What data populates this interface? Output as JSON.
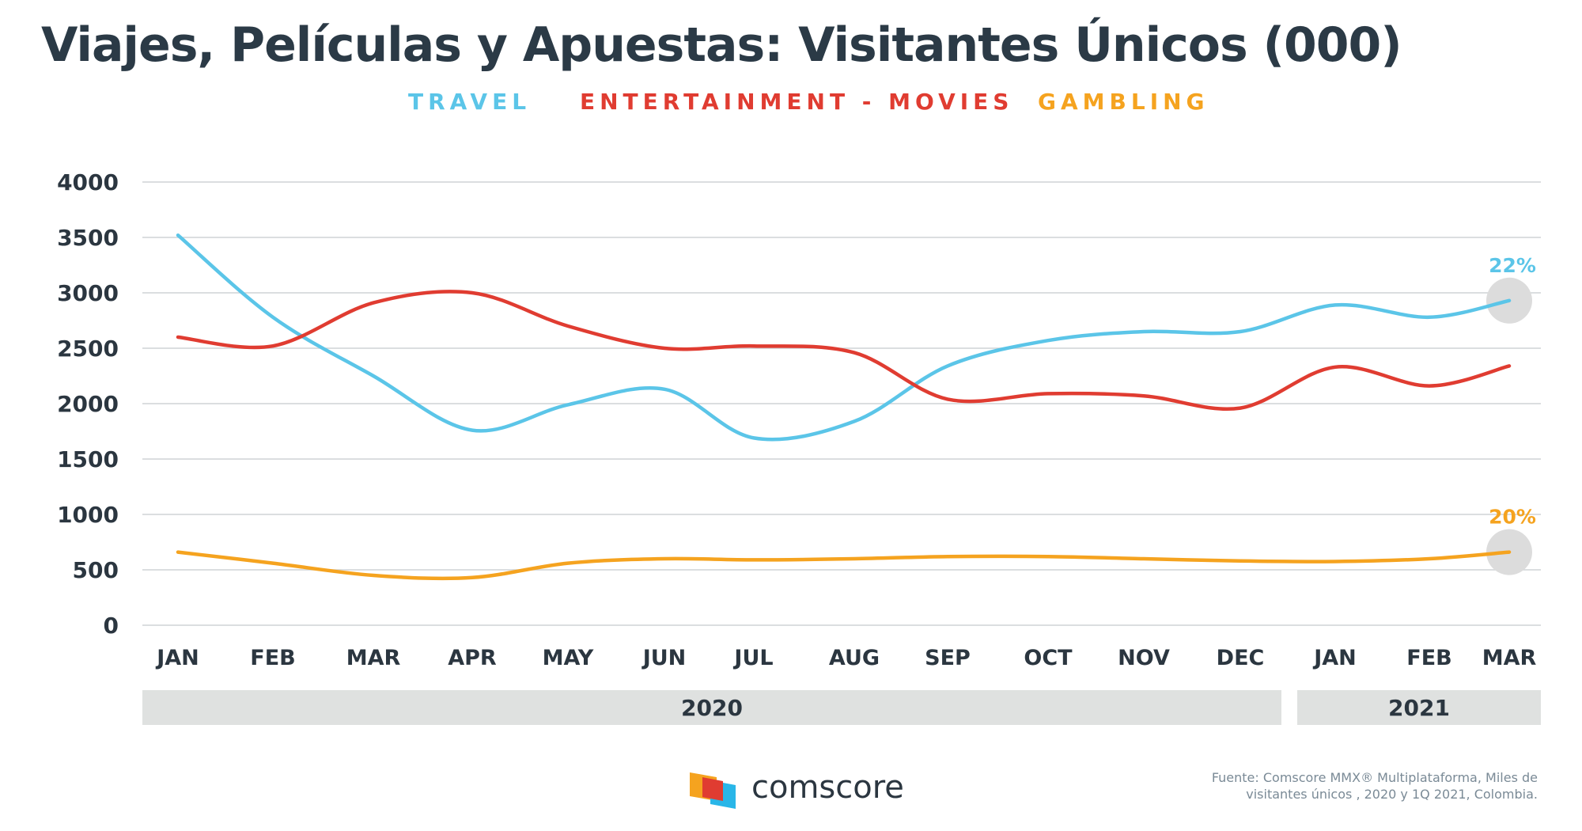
{
  "title": "Viajes, Películas y Apuestas:  Visitantes Únicos (000)",
  "colors": {
    "travel": "#5bc5e8",
    "movies": "#e03c31",
    "gambling": "#f5a31f",
    "grid": "#cfd3d6",
    "band": "#dfe1e0",
    "marker": "#dcdcdc",
    "text": "#2b3640"
  },
  "brand": {
    "name": "comscore",
    "icon": "comscore-logo-icon"
  },
  "source": "Fuente: Comscore MMX® Multiplataforma, Miles de visitantes únicos , 2020 y 1Q 2021, Colombia.",
  "chart_data": {
    "type": "line",
    "title": "Viajes, Películas y Apuestas:  Visitantes Únicos (000)",
    "categories": [
      "JAN",
      "FEB",
      "MAR",
      "APR",
      "MAY",
      "JUN",
      "JUL",
      "AUG",
      "SEP",
      "OCT",
      "NOV",
      "DEC",
      "JAN",
      "FEB",
      "MAR"
    ],
    "year_groups": [
      {
        "label": "2020",
        "from": 0,
        "to": 11
      },
      {
        "label": "2021",
        "from": 12,
        "to": 14
      }
    ],
    "series": [
      {
        "name": "TRAVEL",
        "key": "travel",
        "values": [
          3520,
          2780,
          2250,
          1760,
          1990,
          2130,
          1690,
          1840,
          2340,
          2570,
          2650,
          2650,
          2890,
          2780,
          2930
        ]
      },
      {
        "name": "ENTERTAINMENT - MOVIES",
        "key": "movies",
        "values": [
          2600,
          2520,
          2910,
          3000,
          2700,
          2500,
          2520,
          2460,
          2040,
          2090,
          2070,
          1960,
          2330,
          2160,
          2340
        ]
      },
      {
        "name": "GAMBLING",
        "key": "gambling",
        "values": [
          660,
          560,
          450,
          430,
          560,
          600,
          590,
          600,
          620,
          620,
          600,
          580,
          575,
          600,
          660
        ]
      }
    ],
    "end_labels": [
      {
        "series": "travel",
        "text": "22%"
      },
      {
        "series": "gambling",
        "text": "20%"
      }
    ],
    "yticks": [
      0,
      500,
      1000,
      1500,
      2000,
      2500,
      3000,
      3500,
      4000
    ],
    "ylim": [
      0,
      4000
    ],
    "grid": true,
    "legend_position": "top-center"
  }
}
